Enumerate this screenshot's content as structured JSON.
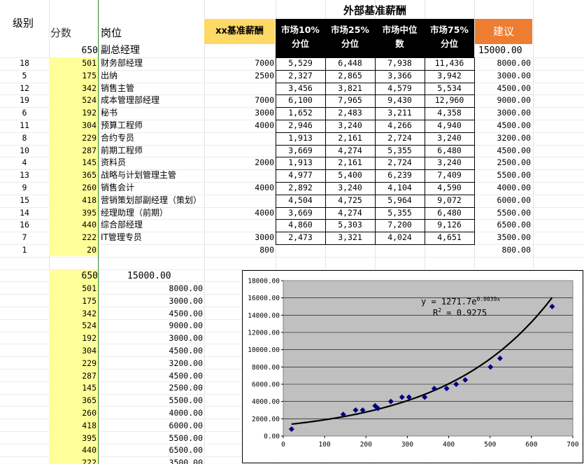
{
  "header": {
    "level": "级别",
    "score": "分数",
    "position": "岗位",
    "xx_base": "xx基准薪酬",
    "external_title": "外部基准薪酬",
    "p10": "市场10%\n分位",
    "p25": "市场25%\n分位",
    "median": "市场中位\n数",
    "p75": "市场75%\n分位",
    "suggest": "建议"
  },
  "top_row": {
    "score": "650",
    "position": "副总经理",
    "suggest": "15000.00"
  },
  "rows": [
    {
      "level": "18",
      "score": "501",
      "position": "财务部经理",
      "xx": "7000",
      "p10": "5,529",
      "p25": "6,448",
      "med": "7,938",
      "p75": "11,436",
      "suggest": "8000.00"
    },
    {
      "level": "5",
      "score": "175",
      "position": "出纳",
      "xx": "2500",
      "p10": "2,327",
      "p25": "2,865",
      "med": "3,366",
      "p75": "3,942",
      "suggest": "3000.00"
    },
    {
      "level": "12",
      "score": "342",
      "position": "销售主管",
      "xx": "",
      "p10": "3,456",
      "p25": "3,821",
      "med": "4,579",
      "p75": "5,534",
      "suggest": "4500.00"
    },
    {
      "level": "19",
      "score": "524",
      "position": "成本管理部经理",
      "xx": "7000",
      "p10": "6,100",
      "p25": "7,965",
      "med": "9,430",
      "p75": "12,960",
      "suggest": "9000.00"
    },
    {
      "level": "6",
      "score": "192",
      "position": "秘书",
      "xx": "3000",
      "p10": "1,652",
      "p25": "2,483",
      "med": "3,211",
      "p75": "4,358",
      "suggest": "3000.00"
    },
    {
      "level": "11",
      "score": "304",
      "position": "预算工程师",
      "xx": "4000",
      "p10": "2,946",
      "p25": "3,240",
      "med": "4,266",
      "p75": "4,940",
      "suggest": "4500.00"
    },
    {
      "level": "8",
      "score": "229",
      "position": "合约专员",
      "xx": "",
      "p10": "1,913",
      "p25": "2,161",
      "med": "2,724",
      "p75": "3,240",
      "suggest": "3200.00"
    },
    {
      "level": "10",
      "score": "287",
      "position": "前期工程师",
      "xx": "",
      "p10": "3,669",
      "p25": "4,274",
      "med": "5,355",
      "p75": "6,480",
      "suggest": "4500.00"
    },
    {
      "level": "4",
      "score": "145",
      "position": "资料员",
      "xx": "2000",
      "p10": "1,913",
      "p25": "2,161",
      "med": "2,724",
      "p75": "3,240",
      "suggest": "2500.00"
    },
    {
      "level": "13",
      "score": "365",
      "position": "战略与计划管理主管",
      "xx": "",
      "p10": "4,977",
      "p25": "5,400",
      "med": "6,239",
      "p75": "7,409",
      "suggest": "5500.00"
    },
    {
      "level": "9",
      "score": "260",
      "position": "销售会计",
      "xx": "4000",
      "p10": "2,892",
      "p25": "3,240",
      "med": "4,104",
      "p75": "4,590",
      "suggest": "4000.00"
    },
    {
      "level": "15",
      "score": "418",
      "position": "营销策划部副经理（策划）",
      "xx": "",
      "p10": "4,504",
      "p25": "4,725",
      "med": "5,964",
      "p75": "9,072",
      "suggest": "6000.00"
    },
    {
      "level": "14",
      "score": "395",
      "position": "经理助理（前期）",
      "xx": "4000",
      "p10": "3,669",
      "p25": "4,274",
      "med": "5,355",
      "p75": "6,480",
      "suggest": "5500.00"
    },
    {
      "level": "16",
      "score": "440",
      "position": "综合部经理",
      "xx": "",
      "p10": "4,860",
      "p25": "5,303",
      "med": "7,200",
      "p75": "9,126",
      "suggest": "6500.00"
    },
    {
      "level": "7",
      "score": "222",
      "position": "IT管理专员",
      "xx": "3000",
      "p10": "2,473",
      "p25": "3,321",
      "med": "4,024",
      "p75": "4,651",
      "suggest": "3500.00"
    },
    {
      "level": "1",
      "score": "20",
      "position": "",
      "xx": "800",
      "p10": "",
      "p25": "",
      "med": "",
      "p75": "",
      "suggest": "800.00"
    }
  ],
  "lower_head": {
    "score": "650",
    "value": "15000.00"
  },
  "lower_rows": [
    {
      "score": "501",
      "value": "8000.00"
    },
    {
      "score": "175",
      "value": "3000.00"
    },
    {
      "score": "342",
      "value": "4500.00"
    },
    {
      "score": "524",
      "value": "9000.00"
    },
    {
      "score": "192",
      "value": "3000.00"
    },
    {
      "score": "304",
      "value": "4500.00"
    },
    {
      "score": "229",
      "value": "3200.00"
    },
    {
      "score": "287",
      "value": "4500.00"
    },
    {
      "score": "145",
      "value": "2500.00"
    },
    {
      "score": "365",
      "value": "5500.00"
    },
    {
      "score": "260",
      "value": "4000.00"
    },
    {
      "score": "418",
      "value": "6000.00"
    },
    {
      "score": "395",
      "value": "5500.00"
    },
    {
      "score": "440",
      "value": "6500.00"
    },
    {
      "score": "222",
      "value": "3500.00"
    }
  ],
  "colors": {
    "yellow": "#ffff99",
    "xx_header": "#ffd966",
    "suggest_header": "#ed7d31",
    "plot_bg": "#c0c0c0",
    "marker": "#000080"
  },
  "chart_data": {
    "type": "scatter",
    "x": [
      650,
      501,
      175,
      342,
      524,
      192,
      304,
      229,
      287,
      145,
      365,
      260,
      418,
      395,
      440,
      222,
      20
    ],
    "y": [
      15000,
      8000,
      3000,
      4500,
      9000,
      3000,
      4500,
      3200,
      4500,
      2500,
      5500,
      4000,
      6000,
      5500,
      6500,
      3500,
      800
    ],
    "xlim": [
      0,
      700
    ],
    "ylim": [
      0,
      18000
    ],
    "x_ticks": [
      "0",
      "100",
      "200",
      "300",
      "400",
      "500",
      "600",
      "700"
    ],
    "y_ticks": [
      "0.00",
      "2000.00",
      "4000.00",
      "6000.00",
      "8000.00",
      "10000.00",
      "12000.00",
      "14000.00",
      "16000.00",
      "18000.00"
    ],
    "trendline": {
      "type": "exponential",
      "a": 1271.7,
      "b": 0.0039
    },
    "equation": {
      "base": "y = 1271.7e",
      "exp": "0.0039x"
    },
    "r2": {
      "label": "R",
      "sup": "2",
      "rest": " = 0.9275"
    },
    "grid": true
  }
}
